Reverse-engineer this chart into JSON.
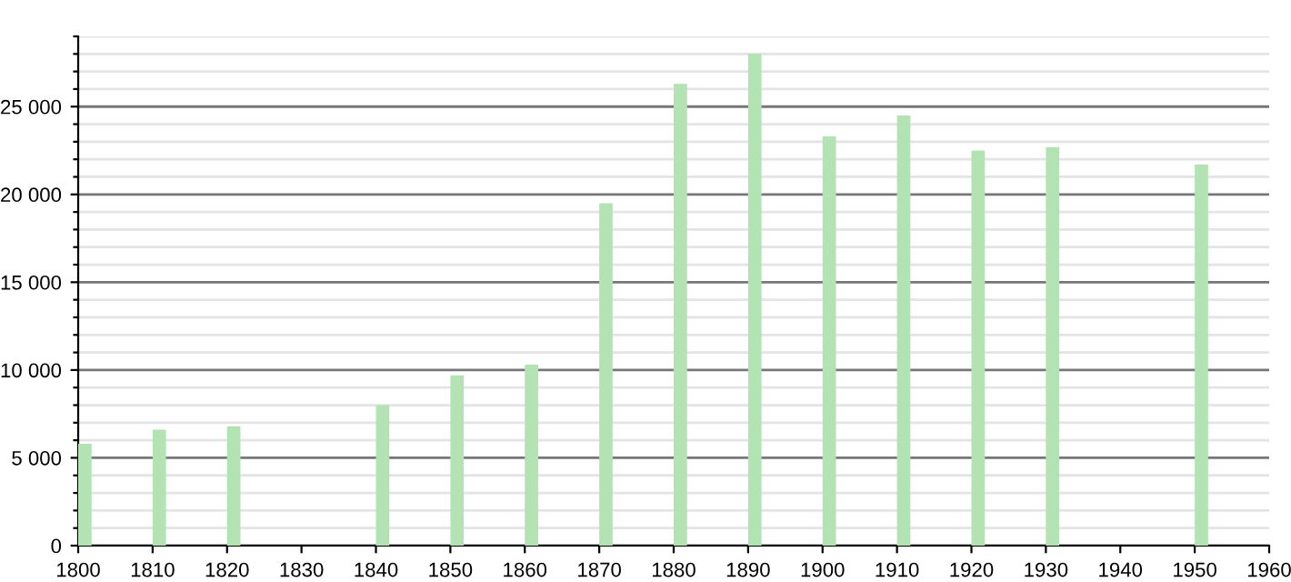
{
  "chart_data": {
    "type": "bar",
    "x": [
      1800,
      1810,
      1820,
      1840,
      1850,
      1860,
      1870,
      1880,
      1890,
      1900,
      1910,
      1920,
      1930,
      1950
    ],
    "values": [
      5800,
      6600,
      6800,
      8000,
      9700,
      10300,
      19500,
      26300,
      28000,
      23300,
      24500,
      22500,
      22700,
      21700
    ],
    "color": "#b3e3b3",
    "xlim": [
      1800,
      1960
    ],
    "xticks": [
      1800,
      1810,
      1820,
      1830,
      1840,
      1850,
      1860,
      1870,
      1880,
      1890,
      1900,
      1910,
      1920,
      1930,
      1940,
      1950,
      1960
    ],
    "ylim": [
      0,
      29000
    ],
    "yticks": [
      {
        "value": 0,
        "label": "0"
      },
      {
        "value": 1000,
        "label": null
      },
      {
        "value": 2000,
        "label": null
      },
      {
        "value": 3000,
        "label": null
      },
      {
        "value": 4000,
        "label": null
      },
      {
        "value": 5000,
        "label": "5 000"
      },
      {
        "value": 6000,
        "label": null
      },
      {
        "value": 7000,
        "label": null
      },
      {
        "value": 8000,
        "label": null
      },
      {
        "value": 9000,
        "label": null
      },
      {
        "value": 10000,
        "label": "10 000"
      },
      {
        "value": 11000,
        "label": null
      },
      {
        "value": 12000,
        "label": null
      },
      {
        "value": 13000,
        "label": null
      },
      {
        "value": 14000,
        "label": null
      },
      {
        "value": 15000,
        "label": "15 000"
      },
      {
        "value": 16000,
        "label": null
      },
      {
        "value": 17000,
        "label": null
      },
      {
        "value": 18000,
        "label": null
      },
      {
        "value": 19000,
        "label": null
      },
      {
        "value": 20000,
        "label": "20 000"
      },
      {
        "value": 21000,
        "label": null
      },
      {
        "value": 22000,
        "label": null
      },
      {
        "value": 23000,
        "label": null
      },
      {
        "value": 24000,
        "label": null
      },
      {
        "value": 25000,
        "label": "25 000"
      },
      {
        "value": 26000,
        "label": null
      },
      {
        "value": 27000,
        "label": null
      },
      {
        "value": 28000,
        "label": null
      },
      {
        "value": 29000,
        "label": null
      }
    ],
    "grid": "y"
  }
}
